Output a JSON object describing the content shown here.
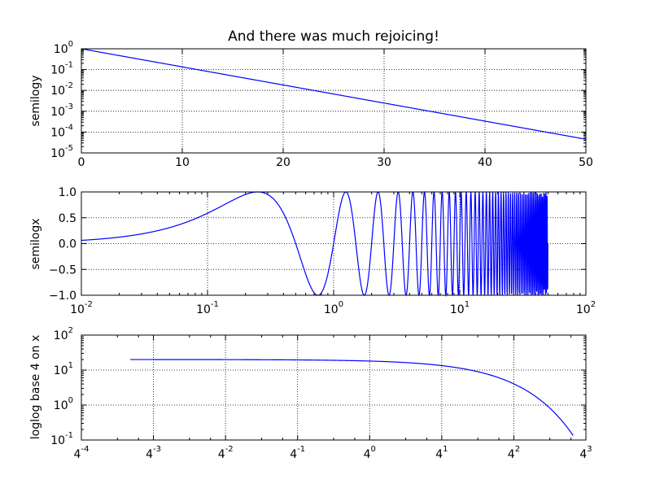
{
  "chart_data": [
    {
      "type": "line",
      "title": "And there was much rejoicing!",
      "ylabel": "semilogy",
      "x_scale": "linear",
      "y_scale": "log10",
      "xlim": [
        0,
        50
      ],
      "ylim": [
        1e-05,
        1
      ],
      "grid": true,
      "x_ticks": [
        0,
        10,
        20,
        30,
        40,
        50
      ],
      "x_tick_labels": [
        "0",
        "10",
        "20",
        "30",
        "40",
        "50"
      ],
      "y_ticks": [
        1,
        0.1,
        0.01,
        0.001,
        0.0001,
        1e-05
      ],
      "y_tick_labels": [
        {
          "base": "10",
          "exp": "0"
        },
        {
          "base": "10",
          "exp": "-1"
        },
        {
          "base": "10",
          "exp": "-2"
        },
        {
          "base": "10",
          "exp": "-3"
        },
        {
          "base": "10",
          "exp": "-4"
        },
        {
          "base": "10",
          "exp": "-5"
        }
      ],
      "series": [
        {
          "function": "exp(-x/5)",
          "x_range": [
            0.01,
            50
          ],
          "color": "#0000ff"
        }
      ]
    },
    {
      "type": "line",
      "ylabel": "semilogx",
      "x_scale": "log10",
      "y_scale": "linear",
      "xlim": [
        0.01,
        100
      ],
      "ylim": [
        -1,
        1
      ],
      "grid": true,
      "x_ticks": [
        0.01,
        0.1,
        1,
        10,
        100
      ],
      "x_tick_labels": [
        {
          "base": "10",
          "exp": "-2"
        },
        {
          "base": "10",
          "exp": "-1"
        },
        {
          "base": "10",
          "exp": "0"
        },
        {
          "base": "10",
          "exp": "1"
        },
        {
          "base": "10",
          "exp": "2"
        }
      ],
      "y_ticks": [
        1,
        0.5,
        0,
        -0.5,
        -1
      ],
      "y_tick_labels": [
        "1.0",
        "0.5",
        "0.0",
        "−0.5",
        "−1.0"
      ],
      "series": [
        {
          "function": "sin(2*pi*x)",
          "x_range": [
            0.01,
            50
          ],
          "color": "#0000ff"
        }
      ]
    },
    {
      "type": "line",
      "ylabel": "loglog base 4 on x",
      "x_scale": "log4",
      "y_scale": "log10",
      "xlim": [
        0.00390625,
        64
      ],
      "ylim": [
        0.1,
        100
      ],
      "grid": true,
      "x_ticks": [
        0.00390625,
        0.015625,
        0.0625,
        0.25,
        1,
        4,
        16,
        64
      ],
      "x_tick_labels": [
        {
          "base": "4",
          "exp": "-4"
        },
        {
          "base": "4",
          "exp": "-3"
        },
        {
          "base": "4",
          "exp": "-2"
        },
        {
          "base": "4",
          "exp": "-1"
        },
        {
          "base": "4",
          "exp": "0"
        },
        {
          "base": "4",
          "exp": "1"
        },
        {
          "base": "4",
          "exp": "2"
        },
        {
          "base": "4",
          "exp": "3"
        }
      ],
      "y_ticks": [
        100,
        10,
        1,
        0.1
      ],
      "y_tick_labels": [
        {
          "base": "10",
          "exp": "2"
        },
        {
          "base": "10",
          "exp": "1"
        },
        {
          "base": "10",
          "exp": "0"
        },
        {
          "base": "10",
          "exp": "-1"
        }
      ],
      "series": [
        {
          "function": "20*exp(-x/10)",
          "x_range": [
            0.01,
            50
          ],
          "color": "#0000ff"
        }
      ]
    }
  ]
}
